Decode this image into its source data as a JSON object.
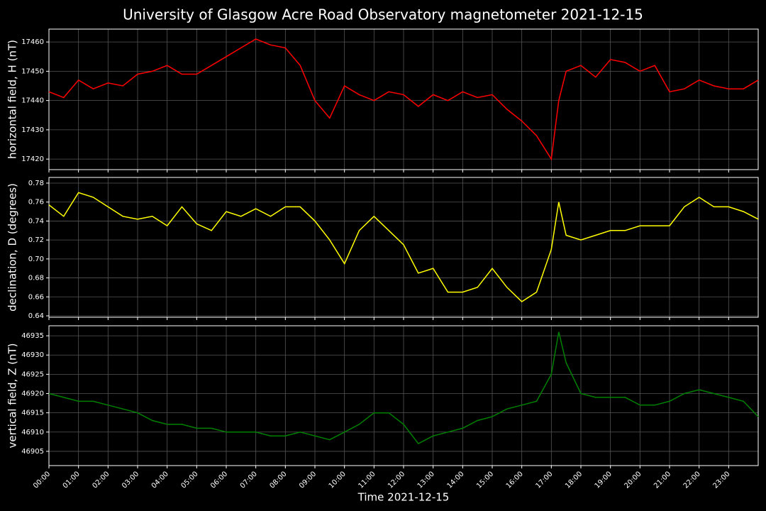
{
  "title": "University of Glasgow Acre Road Observatory magnetometer 2021-12-15",
  "chart_data": [
    {
      "type": "line",
      "ylabel": "horizontal field, H (nT)",
      "color": "#ff0000",
      "grid": true,
      "x": [
        0,
        0.5,
        1,
        1.5,
        2,
        2.5,
        3,
        3.5,
        4,
        4.5,
        5,
        5.5,
        6,
        6.5,
        7,
        7.5,
        8,
        8.5,
        9,
        9.5,
        10,
        10.5,
        11,
        11.5,
        12,
        12.5,
        13,
        13.5,
        14,
        14.5,
        15,
        15.5,
        16,
        16.5,
        17,
        17.25,
        17.5,
        18,
        18.5,
        19,
        19.5,
        20,
        20.5,
        21,
        21.5,
        22,
        22.5,
        23,
        23.5,
        24
      ],
      "values": [
        17443,
        17441,
        17447,
        17444,
        17446,
        17445,
        17449,
        17450,
        17452,
        17449,
        17449,
        17452,
        17455,
        17458,
        17461,
        17459,
        17458,
        17452,
        17440,
        17434,
        17445,
        17442,
        17440,
        17443,
        17442,
        17438,
        17442,
        17440,
        17443,
        17441,
        17442,
        17437,
        17433,
        17428,
        17420,
        17440,
        17450,
        17452,
        17448,
        17454,
        17453,
        17450,
        17452,
        17443,
        17444,
        17447,
        17445,
        17444,
        17444,
        17447
      ],
      "xlim": [
        0,
        24
      ],
      "ylim": [
        17416.4,
        17464.4
      ],
      "yticks": [
        17420,
        17430,
        17440,
        17450,
        17460
      ]
    },
    {
      "type": "line",
      "ylabel": "declination, D (degrees)",
      "color": "#ffff00",
      "grid": true,
      "x": [
        0,
        0.5,
        1,
        1.5,
        2,
        2.5,
        3,
        3.5,
        4,
        4.5,
        5,
        5.5,
        6,
        6.5,
        7,
        7.5,
        8,
        8.5,
        9,
        9.5,
        10,
        10.5,
        11,
        11.5,
        12,
        12.5,
        13,
        13.5,
        14,
        14.5,
        15,
        15.5,
        16,
        16.5,
        17,
        17.25,
        17.5,
        18,
        18.5,
        19,
        19.5,
        20,
        20.5,
        21,
        21.5,
        22,
        22.5,
        23,
        23.5,
        24
      ],
      "values": [
        0.757,
        0.745,
        0.77,
        0.765,
        0.755,
        0.745,
        0.742,
        0.745,
        0.735,
        0.755,
        0.737,
        0.73,
        0.75,
        0.745,
        0.753,
        0.745,
        0.755,
        0.755,
        0.74,
        0.72,
        0.695,
        0.73,
        0.745,
        0.73,
        0.715,
        0.685,
        0.69,
        0.665,
        0.665,
        0.67,
        0.69,
        0.67,
        0.655,
        0.665,
        0.71,
        0.76,
        0.725,
        0.72,
        0.725,
        0.73,
        0.73,
        0.735,
        0.735,
        0.735,
        0.755,
        0.765,
        0.755,
        0.755,
        0.75,
        0.742
      ],
      "xlim": [
        0,
        24
      ],
      "ylim": [
        0.6385,
        0.786
      ],
      "yticks": [
        0.64,
        0.66,
        0.68,
        {
          "value": 0.7,
          "label": "0.70"
        },
        0.72,
        0.74,
        0.76,
        0.78
      ]
    },
    {
      "type": "line",
      "ylabel": "vertical field, Z (nT)",
      "xlabel": "Time 2021-12-15",
      "color": "#008000",
      "grid": true,
      "x": [
        0,
        0.5,
        1,
        1.5,
        2,
        2.5,
        3,
        3.5,
        4,
        4.5,
        5,
        5.5,
        6,
        6.5,
        7,
        7.5,
        8,
        8.5,
        9,
        9.5,
        10,
        10.5,
        11,
        11.5,
        12,
        12.5,
        13,
        13.5,
        14,
        14.5,
        15,
        15.5,
        16,
        16.5,
        17,
        17.25,
        17.5,
        18,
        18.5,
        19,
        19.5,
        20,
        20.5,
        21,
        21.5,
        22,
        22.5,
        23,
        23.5,
        24
      ],
      "values": [
        46920,
        46919,
        46918,
        46918,
        46917,
        46916,
        46915,
        46913,
        46912,
        46912,
        46911,
        46911,
        46910,
        46910,
        46910,
        46909,
        46909,
        46910,
        46909,
        46908,
        46910,
        46912,
        46915,
        46915,
        46912,
        46907,
        46909,
        46910,
        46911,
        46913,
        46914,
        46916,
        46917,
        46918,
        46925,
        46936,
        46928,
        46920,
        46919,
        46919,
        46919,
        46917,
        46917,
        46918,
        46920,
        46921,
        46920,
        46919,
        46918,
        46914
      ],
      "xlim": [
        0,
        24
      ],
      "ylim": [
        46901.3,
        46937.6
      ],
      "yticks": [
        46905,
        46910,
        46915,
        46920,
        46925,
        46930,
        46935
      ],
      "xticks": [
        {
          "value": 0,
          "label": "00:00"
        },
        {
          "value": 1,
          "label": "01:00"
        },
        {
          "value": 2,
          "label": "02:00"
        },
        {
          "value": 3,
          "label": "03:00"
        },
        {
          "value": 4,
          "label": "04:00"
        },
        {
          "value": 5,
          "label": "05:00"
        },
        {
          "value": 6,
          "label": "06:00"
        },
        {
          "value": 7,
          "label": "07:00"
        },
        {
          "value": 8,
          "label": "08:00"
        },
        {
          "value": 9,
          "label": "09:00"
        },
        {
          "value": 10,
          "label": "10:00"
        },
        {
          "value": 11,
          "label": "11:00"
        },
        {
          "value": 12,
          "label": "12:00"
        },
        {
          "value": 13,
          "label": "13:00"
        },
        {
          "value": 14,
          "label": "14:00"
        },
        {
          "value": 15,
          "label": "15:00"
        },
        {
          "value": 16,
          "label": "16:00"
        },
        {
          "value": 17,
          "label": "17:00"
        },
        {
          "value": 18,
          "label": "18:00"
        },
        {
          "value": 19,
          "label": "19:00"
        },
        {
          "value": 20,
          "label": "20:00"
        },
        {
          "value": 21,
          "label": "21:00"
        },
        {
          "value": 22,
          "label": "22:00"
        },
        {
          "value": 23,
          "label": "23:00"
        }
      ]
    }
  ]
}
